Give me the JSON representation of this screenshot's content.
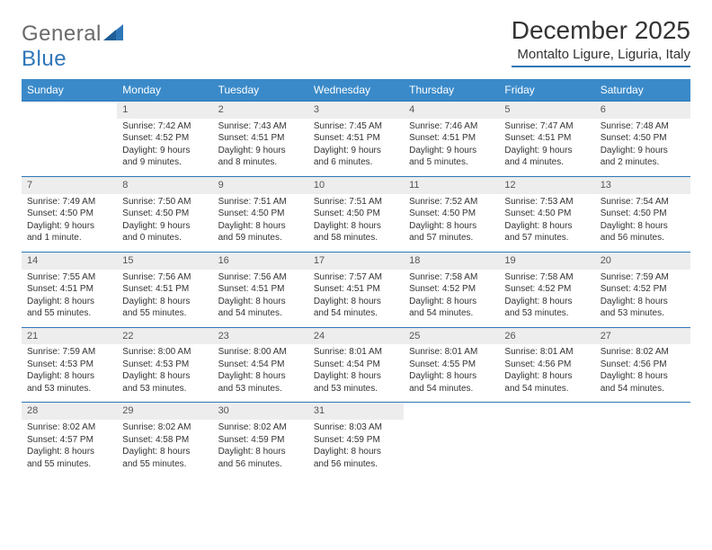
{
  "brand": {
    "part1": "General",
    "part2": "Blue"
  },
  "title": "December 2025",
  "location": "Montalto Ligure, Liguria, Italy",
  "colors": {
    "header_bg": "#3a8ac9",
    "rule": "#2f76b8",
    "daynum_bg": "#ededed",
    "text": "#333333",
    "logo_gray": "#6a6a6a",
    "logo_blue": "#2f76b8"
  },
  "weekdays": [
    "Sunday",
    "Monday",
    "Tuesday",
    "Wednesday",
    "Thursday",
    "Friday",
    "Saturday"
  ],
  "weeks": [
    [
      {
        "n": "",
        "sunrise": "",
        "sunset": "",
        "daylight": ""
      },
      {
        "n": "1",
        "sunrise": "7:42 AM",
        "sunset": "4:52 PM",
        "daylight": "9 hours and 9 minutes."
      },
      {
        "n": "2",
        "sunrise": "7:43 AM",
        "sunset": "4:51 PM",
        "daylight": "9 hours and 8 minutes."
      },
      {
        "n": "3",
        "sunrise": "7:45 AM",
        "sunset": "4:51 PM",
        "daylight": "9 hours and 6 minutes."
      },
      {
        "n": "4",
        "sunrise": "7:46 AM",
        "sunset": "4:51 PM",
        "daylight": "9 hours and 5 minutes."
      },
      {
        "n": "5",
        "sunrise": "7:47 AM",
        "sunset": "4:51 PM",
        "daylight": "9 hours and 4 minutes."
      },
      {
        "n": "6",
        "sunrise": "7:48 AM",
        "sunset": "4:50 PM",
        "daylight": "9 hours and 2 minutes."
      }
    ],
    [
      {
        "n": "7",
        "sunrise": "7:49 AM",
        "sunset": "4:50 PM",
        "daylight": "9 hours and 1 minute."
      },
      {
        "n": "8",
        "sunrise": "7:50 AM",
        "sunset": "4:50 PM",
        "daylight": "9 hours and 0 minutes."
      },
      {
        "n": "9",
        "sunrise": "7:51 AM",
        "sunset": "4:50 PM",
        "daylight": "8 hours and 59 minutes."
      },
      {
        "n": "10",
        "sunrise": "7:51 AM",
        "sunset": "4:50 PM",
        "daylight": "8 hours and 58 minutes."
      },
      {
        "n": "11",
        "sunrise": "7:52 AM",
        "sunset": "4:50 PM",
        "daylight": "8 hours and 57 minutes."
      },
      {
        "n": "12",
        "sunrise": "7:53 AM",
        "sunset": "4:50 PM",
        "daylight": "8 hours and 57 minutes."
      },
      {
        "n": "13",
        "sunrise": "7:54 AM",
        "sunset": "4:50 PM",
        "daylight": "8 hours and 56 minutes."
      }
    ],
    [
      {
        "n": "14",
        "sunrise": "7:55 AM",
        "sunset": "4:51 PM",
        "daylight": "8 hours and 55 minutes."
      },
      {
        "n": "15",
        "sunrise": "7:56 AM",
        "sunset": "4:51 PM",
        "daylight": "8 hours and 55 minutes."
      },
      {
        "n": "16",
        "sunrise": "7:56 AM",
        "sunset": "4:51 PM",
        "daylight": "8 hours and 54 minutes."
      },
      {
        "n": "17",
        "sunrise": "7:57 AM",
        "sunset": "4:51 PM",
        "daylight": "8 hours and 54 minutes."
      },
      {
        "n": "18",
        "sunrise": "7:58 AM",
        "sunset": "4:52 PM",
        "daylight": "8 hours and 54 minutes."
      },
      {
        "n": "19",
        "sunrise": "7:58 AM",
        "sunset": "4:52 PM",
        "daylight": "8 hours and 53 minutes."
      },
      {
        "n": "20",
        "sunrise": "7:59 AM",
        "sunset": "4:52 PM",
        "daylight": "8 hours and 53 minutes."
      }
    ],
    [
      {
        "n": "21",
        "sunrise": "7:59 AM",
        "sunset": "4:53 PM",
        "daylight": "8 hours and 53 minutes."
      },
      {
        "n": "22",
        "sunrise": "8:00 AM",
        "sunset": "4:53 PM",
        "daylight": "8 hours and 53 minutes."
      },
      {
        "n": "23",
        "sunrise": "8:00 AM",
        "sunset": "4:54 PM",
        "daylight": "8 hours and 53 minutes."
      },
      {
        "n": "24",
        "sunrise": "8:01 AM",
        "sunset": "4:54 PM",
        "daylight": "8 hours and 53 minutes."
      },
      {
        "n": "25",
        "sunrise": "8:01 AM",
        "sunset": "4:55 PM",
        "daylight": "8 hours and 54 minutes."
      },
      {
        "n": "26",
        "sunrise": "8:01 AM",
        "sunset": "4:56 PM",
        "daylight": "8 hours and 54 minutes."
      },
      {
        "n": "27",
        "sunrise": "8:02 AM",
        "sunset": "4:56 PM",
        "daylight": "8 hours and 54 minutes."
      }
    ],
    [
      {
        "n": "28",
        "sunrise": "8:02 AM",
        "sunset": "4:57 PM",
        "daylight": "8 hours and 55 minutes."
      },
      {
        "n": "29",
        "sunrise": "8:02 AM",
        "sunset": "4:58 PM",
        "daylight": "8 hours and 55 minutes."
      },
      {
        "n": "30",
        "sunrise": "8:02 AM",
        "sunset": "4:59 PM",
        "daylight": "8 hours and 56 minutes."
      },
      {
        "n": "31",
        "sunrise": "8:03 AM",
        "sunset": "4:59 PM",
        "daylight": "8 hours and 56 minutes."
      },
      {
        "n": "",
        "sunrise": "",
        "sunset": "",
        "daylight": ""
      },
      {
        "n": "",
        "sunrise": "",
        "sunset": "",
        "daylight": ""
      },
      {
        "n": "",
        "sunrise": "",
        "sunset": "",
        "daylight": ""
      }
    ]
  ],
  "labels": {
    "sunrise": "Sunrise:",
    "sunset": "Sunset:",
    "daylight": "Daylight:"
  }
}
